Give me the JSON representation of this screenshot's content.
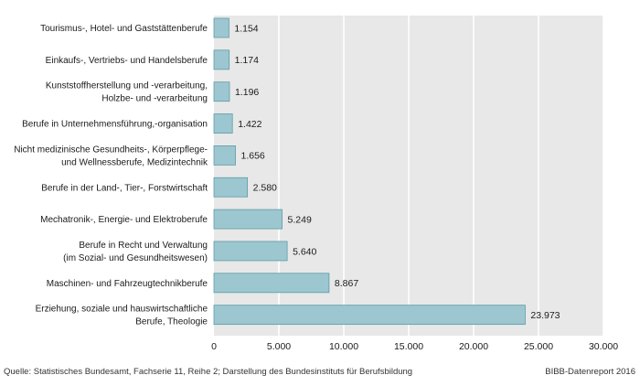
{
  "chart_data": {
    "type": "bar",
    "orientation": "horizontal",
    "title": "",
    "xlabel": "",
    "ylabel": "",
    "xlim": [
      0,
      30000
    ],
    "ticks": [
      0,
      5000,
      10000,
      15000,
      20000,
      25000,
      30000
    ],
    "tick_labels": [
      "0",
      "5.000",
      "10.000",
      "15.000",
      "20.000",
      "25.000",
      "30.000"
    ],
    "grid": true,
    "legend": "none",
    "categories": [
      [
        "Tourismus-, Hotel- und Gaststättenberufe"
      ],
      [
        "Einkaufs-, Vertriebs- und Handelsberufe"
      ],
      [
        "Kunststoffherstellung und -verarbeitung,",
        "Holzbe- und -verarbeitung"
      ],
      [
        "Berufe in Unternehmensführung,-organisation"
      ],
      [
        "Nicht medizinische Gesundheits-, Körperpflege-",
        "und Wellnessberufe, Medizintechnik"
      ],
      [
        "Berufe in der Land-, Tier-, Forstwirtschaft"
      ],
      [
        "Mechatronik-, Energie- und Elektroberufe"
      ],
      [
        "Berufe in Recht und Verwaltung",
        "(im Sozial- und Gesundheitswesen)"
      ],
      [
        "Maschinen- und Fahrzeugtechnikberufe"
      ],
      [
        "Erziehung, soziale und hauswirtschaftliche",
        "Berufe, Theologie"
      ]
    ],
    "values": [
      1154,
      1174,
      1196,
      1422,
      1656,
      2580,
      5249,
      5640,
      8867,
      23973
    ],
    "value_labels": [
      "1.154",
      "1.174",
      "1.196",
      "1.422",
      "1.656",
      "2.580",
      "5.249",
      "5.640",
      "8.867",
      "23.973"
    ]
  },
  "colors": {
    "plot_background": "#e8e8e8",
    "bar_fill": "#9cc7d0",
    "bar_stroke": "#5f9aa7",
    "grid": "#ffffff",
    "text": "#1a1a1a"
  },
  "footer": {
    "source": "Quelle: Statistisches Bundesamt, Fachserie 11, Reihe 2; Darstellung des Bundesinstituts für Berufsbildung",
    "credit": "BIBB-Datenreport 2016"
  }
}
